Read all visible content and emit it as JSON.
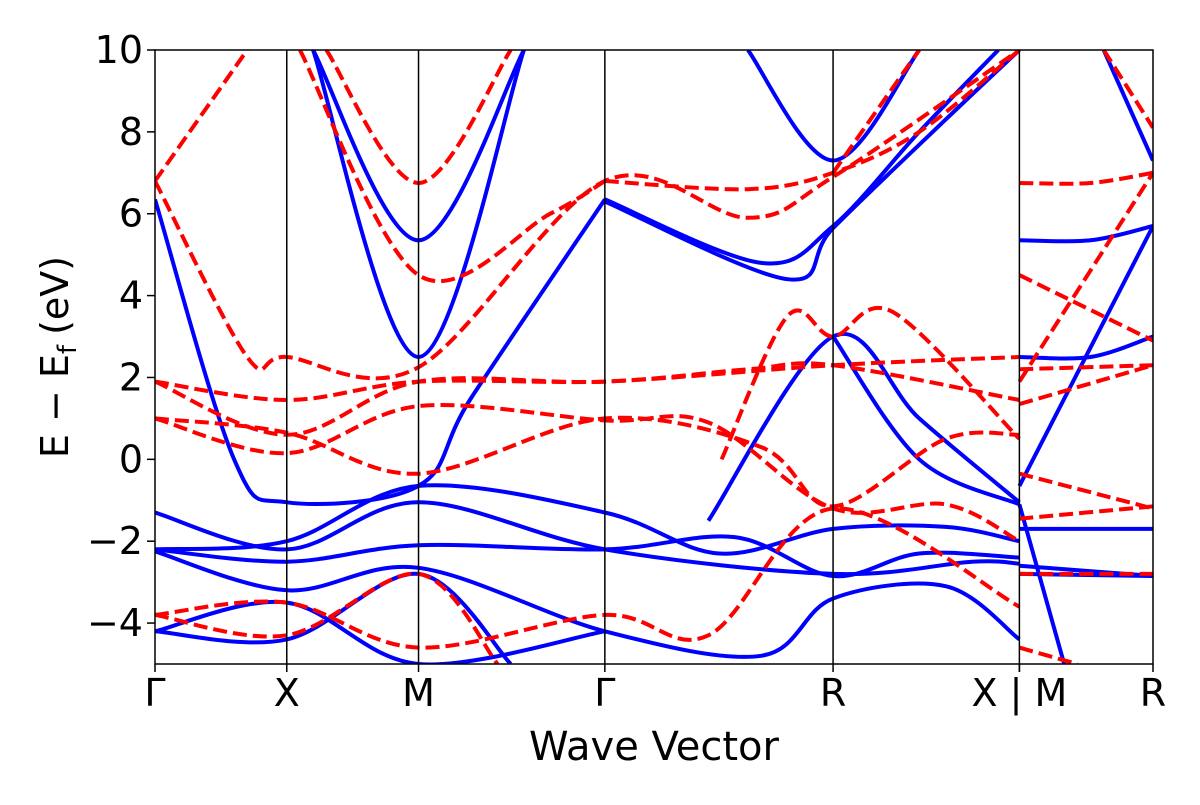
{
  "chart_data": {
    "type": "line",
    "title": "",
    "xlabel": "Wave Vector",
    "ylabel": "E − E",
    "ylabel_sub": "f",
    "ylabel_unit": "(eV)",
    "ylim": [
      -5,
      10
    ],
    "yticks": [
      10,
      8,
      6,
      4,
      2,
      0,
      -2,
      -4
    ],
    "ytick_labels": [
      "10",
      "8",
      "6",
      "4",
      "2",
      "0",
      "−2",
      "−4"
    ],
    "kpoints": [
      {
        "label": "Γ",
        "k": 0.0
      },
      {
        "label": "X",
        "k": 1.0
      },
      {
        "label": "M",
        "k": 2.0
      },
      {
        "label": "Γ",
        "k": 3.414
      },
      {
        "label": "R",
        "k": 5.146
      },
      {
        "label": "X",
        "k": 6.56
      },
      {
        "label": "M",
        "k": 6.56
      },
      {
        "label": "R",
        "k": 7.574
      }
    ],
    "kpoint_combined_label": "X | M",
    "colors": {
      "solid": "#0000ff",
      "dashed": "#ff0000"
    },
    "series": [
      {
        "style": "solid",
        "color": "#0000ff",
        "points": [
          [
            0,
            -2.2
          ],
          [
            1,
            -2.0
          ],
          [
            2,
            -0.65
          ],
          [
            3.414,
            -1.3
          ],
          [
            4.28,
            -2.3
          ],
          [
            5.146,
            -1.7
          ],
          [
            6.0,
            -1.65
          ],
          [
            6.56,
            -2.0
          ]
        ]
      },
      {
        "style": "solid",
        "color": "#0000ff",
        "points": [
          [
            0,
            -1.3
          ],
          [
            1,
            -2.2
          ],
          [
            2,
            -1.05
          ],
          [
            3.414,
            -2.2
          ],
          [
            5.146,
            -2.8
          ],
          [
            6.2,
            -2.5
          ],
          [
            6.56,
            -2.55
          ]
        ]
      },
      {
        "style": "solid",
        "color": "#0000ff",
        "points": [
          [
            0,
            -2.2
          ],
          [
            1,
            -2.5
          ],
          [
            2,
            -2.1
          ],
          [
            3.414,
            -2.2
          ],
          [
            4.4,
            -1.9
          ],
          [
            5.146,
            -2.85
          ],
          [
            5.8,
            -2.3
          ],
          [
            6.56,
            -2.4
          ]
        ]
      },
      {
        "style": "solid",
        "color": "#0000ff",
        "points": [
          [
            0,
            -2.25
          ],
          [
            1,
            -3.2
          ],
          [
            2,
            -2.65
          ],
          [
            3.414,
            -4.2
          ],
          [
            4.6,
            -4.8
          ],
          [
            5.146,
            -3.4
          ],
          [
            6.0,
            -3.1
          ],
          [
            6.56,
            -4.4
          ]
        ]
      },
      {
        "style": "solid",
        "color": "#0000ff",
        "points": [
          [
            0,
            -4.2
          ],
          [
            1,
            -3.5
          ],
          [
            2,
            -5.0
          ],
          [
            3.414,
            -4.2
          ]
        ]
      },
      {
        "style": "solid",
        "color": "#0000ff",
        "points": [
          [
            0,
            -4.2
          ],
          [
            1,
            -4.4
          ],
          [
            2,
            -2.8
          ],
          [
            2.7,
            -5.0
          ]
        ]
      },
      {
        "style": "solid",
        "color": "#0000ff",
        "points": [
          [
            0,
            6.35
          ],
          [
            0.6,
            0.0
          ],
          [
            1,
            -1.05
          ],
          [
            2,
            -0.65
          ],
          [
            2.4,
            1.5
          ],
          [
            3.414,
            6.35
          ]
        ]
      },
      {
        "style": "solid",
        "color": "#0000ff",
        "points": [
          [
            3.414,
            6.35
          ],
          [
            4.6,
            4.8
          ],
          [
            5.146,
            5.7
          ],
          [
            5.8,
            8.0
          ],
          [
            6.4,
            10.0
          ]
        ]
      },
      {
        "style": "solid",
        "color": "#0000ff",
        "points": [
          [
            3.414,
            6.3
          ],
          [
            4.8,
            4.4
          ],
          [
            5.146,
            5.65
          ],
          [
            6.0,
            8.3
          ],
          [
            6.56,
            10.0
          ]
        ]
      },
      {
        "style": "solid",
        "color": "#0000ff",
        "points": [
          [
            1.2,
            10
          ],
          [
            2,
            5.35
          ],
          [
            2.8,
            10
          ]
        ]
      },
      {
        "style": "solid",
        "color": "#0000ff",
        "points": [
          [
            1.2,
            10
          ],
          [
            2,
            2.5
          ],
          [
            2.8,
            10
          ]
        ]
      },
      {
        "style": "solid",
        "color": "#0000ff",
        "points": [
          [
            4.5,
            10
          ],
          [
            5.146,
            7.3
          ],
          [
            5.8,
            10
          ]
        ]
      },
      {
        "style": "solid",
        "color": "#0000ff",
        "points": [
          [
            5.146,
            3.0
          ],
          [
            5.8,
            0.0
          ],
          [
            6.56,
            -1.1
          ]
        ]
      },
      {
        "style": "solid",
        "color": "#0000ff",
        "points": [
          [
            4.2,
            -1.5
          ],
          [
            5.146,
            3.0
          ],
          [
            5.8,
            1.0
          ],
          [
            6.56,
            -1.05
          ]
        ]
      },
      {
        "style": "solid",
        "color": "#0000ff",
        "points": [
          [
            6.56,
            5.35
          ],
          [
            7.1,
            5.35
          ],
          [
            7.574,
            5.7
          ]
        ]
      },
      {
        "style": "solid",
        "color": "#0000ff",
        "points": [
          [
            6.56,
            2.5
          ],
          [
            7.1,
            2.5
          ],
          [
            7.574,
            3.0
          ]
        ]
      },
      {
        "style": "solid",
        "color": "#0000ff",
        "points": [
          [
            6.56,
            -0.65
          ],
          [
            7.574,
            5.7
          ]
        ]
      },
      {
        "style": "solid",
        "color": "#0000ff",
        "points": [
          [
            6.56,
            -1.1
          ],
          [
            6.9,
            -5.0
          ]
        ]
      },
      {
        "style": "solid",
        "color": "#0000ff",
        "points": [
          [
            6.56,
            -1.7
          ],
          [
            7.574,
            -1.7
          ]
        ]
      },
      {
        "style": "solid",
        "color": "#0000ff",
        "points": [
          [
            6.56,
            -2.6
          ],
          [
            7.574,
            -2.85
          ]
        ]
      },
      {
        "style": "solid",
        "color": "#0000ff",
        "points": [
          [
            6.56,
            -2.8
          ],
          [
            7.574,
            -2.85
          ]
        ]
      },
      {
        "style": "solid",
        "color": "#0000ff",
        "points": [
          [
            7.2,
            10
          ],
          [
            7.574,
            7.3
          ]
        ]
      },
      {
        "style": "dashed",
        "color": "#ff0000",
        "points": [
          [
            0,
            1.9
          ],
          [
            1,
            1.45
          ],
          [
            2,
            1.9
          ],
          [
            3.414,
            1.9
          ],
          [
            4.5,
            2.2
          ],
          [
            5.146,
            2.3
          ],
          [
            6.56,
            1.45
          ]
        ]
      },
      {
        "style": "dashed",
        "color": "#ff0000",
        "points": [
          [
            0,
            1.9
          ],
          [
            1,
            0.6
          ],
          [
            2,
            1.9
          ],
          [
            3.414,
            1.9
          ],
          [
            5.146,
            2.3
          ],
          [
            6.56,
            2.5
          ]
        ]
      },
      {
        "style": "dashed",
        "color": "#ff0000",
        "points": [
          [
            0,
            1.0
          ],
          [
            1,
            0.15
          ],
          [
            2,
            1.3
          ],
          [
            3.414,
            0.95
          ],
          [
            4.2,
            0.9
          ],
          [
            5.146,
            -1.2
          ],
          [
            6.0,
            -1.1
          ],
          [
            6.56,
            -2.0
          ]
        ]
      },
      {
        "style": "dashed",
        "color": "#ff0000",
        "points": [
          [
            0,
            1.0
          ],
          [
            1,
            0.65
          ],
          [
            2,
            -0.35
          ],
          [
            3.414,
            1.0
          ],
          [
            4.6,
            0.3
          ],
          [
            5.146,
            -1.15
          ],
          [
            6.0,
            0.5
          ],
          [
            6.56,
            0.6
          ]
        ]
      },
      {
        "style": "dashed",
        "color": "#ff0000",
        "points": [
          [
            0,
            6.8
          ],
          [
            0.7,
            2.5
          ],
          [
            1,
            2.5
          ],
          [
            2,
            2.25
          ],
          [
            3.414,
            6.8
          ],
          [
            4.5,
            5.9
          ],
          [
            5.146,
            6.9
          ],
          [
            6.56,
            10
          ]
        ]
      },
      {
        "style": "dashed",
        "color": "#ff0000",
        "points": [
          [
            3.414,
            6.8
          ],
          [
            4.5,
            6.6
          ],
          [
            5.146,
            7.0
          ],
          [
            5.8,
            8.0
          ],
          [
            6.56,
            10
          ]
        ]
      },
      {
        "style": "dashed",
        "color": "#ff0000",
        "points": [
          [
            1.3,
            10
          ],
          [
            2,
            6.75
          ],
          [
            2.7,
            10
          ]
        ]
      },
      {
        "style": "dashed",
        "color": "#ff0000",
        "points": [
          [
            1.1,
            10
          ],
          [
            2,
            4.5
          ],
          [
            3.0,
            6.0
          ],
          [
            3.414,
            6.8
          ]
        ]
      },
      {
        "style": "dashed",
        "color": "#ff0000",
        "points": [
          [
            0,
            6.8
          ],
          [
            0.7,
            10
          ]
        ]
      },
      {
        "style": "dashed",
        "color": "#ff0000",
        "points": [
          [
            4.3,
            0.0
          ],
          [
            4.8,
            3.5
          ],
          [
            5.146,
            3.0
          ],
          [
            5.6,
            3.6
          ],
          [
            6.56,
            0.5
          ]
        ]
      },
      {
        "style": "dashed",
        "color": "#ff0000",
        "points": [
          [
            0,
            -3.8
          ],
          [
            1,
            -3.5
          ],
          [
            2,
            -4.6
          ],
          [
            3.414,
            -3.8
          ],
          [
            4.2,
            -4.3
          ],
          [
            5.146,
            -1.2
          ],
          [
            6.56,
            -3.6
          ]
        ]
      },
      {
        "style": "dashed",
        "color": "#ff0000",
        "points": [
          [
            0,
            -3.8
          ],
          [
            1,
            -4.3
          ],
          [
            2,
            -2.8
          ],
          [
            2.6,
            -5.0
          ]
        ]
      },
      {
        "style": "dashed",
        "color": "#ff0000",
        "points": [
          [
            5.146,
            7.0
          ],
          [
            5.8,
            10.0
          ]
        ]
      },
      {
        "style": "dashed",
        "color": "#ff0000",
        "points": [
          [
            6.56,
            6.75
          ],
          [
            7.1,
            6.75
          ],
          [
            7.574,
            7.0
          ]
        ]
      },
      {
        "style": "dashed",
        "color": "#ff0000",
        "points": [
          [
            6.56,
            4.5
          ],
          [
            7.574,
            2.9
          ]
        ]
      },
      {
        "style": "dashed",
        "color": "#ff0000",
        "points": [
          [
            6.56,
            2.2
          ],
          [
            7.574,
            2.3
          ]
        ]
      },
      {
        "style": "dashed",
        "color": "#ff0000",
        "points": [
          [
            6.56,
            1.35
          ],
          [
            7.574,
            2.3
          ]
        ]
      },
      {
        "style": "dashed",
        "color": "#ff0000",
        "points": [
          [
            6.56,
            -0.35
          ],
          [
            7.574,
            -1.2
          ]
        ]
      },
      {
        "style": "dashed",
        "color": "#ff0000",
        "points": [
          [
            6.56,
            -1.45
          ],
          [
            7.574,
            -1.15
          ]
        ]
      },
      {
        "style": "dashed",
        "color": "#ff0000",
        "points": [
          [
            6.56,
            -2.8
          ],
          [
            7.574,
            -2.8
          ]
        ]
      },
      {
        "style": "dashed",
        "color": "#ff0000",
        "points": [
          [
            6.56,
            -4.6
          ],
          [
            7.0,
            -5.0
          ]
        ]
      },
      {
        "style": "dashed",
        "color": "#ff0000",
        "points": [
          [
            6.56,
            1.9
          ],
          [
            7.574,
            7.0
          ]
        ]
      },
      {
        "style": "dashed",
        "color": "#ff0000",
        "points": [
          [
            7.2,
            10
          ],
          [
            7.574,
            8.1
          ]
        ]
      }
    ]
  }
}
